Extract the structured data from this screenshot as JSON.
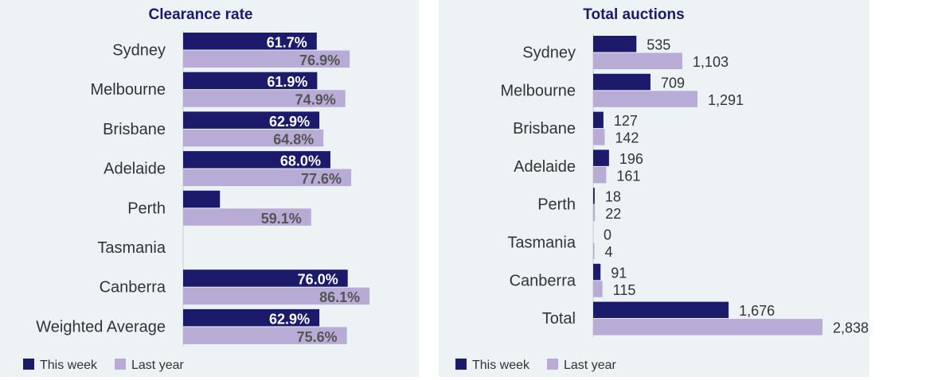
{
  "colors": {
    "this_week": "#1b1a6b",
    "last_year": "#b8acd6",
    "panel_bg": "#edf2f5",
    "axis": "#c8ccd0"
  },
  "chart_data": [
    {
      "type": "bar",
      "orientation": "horizontal",
      "title": "Clearance rate",
      "categories": [
        "Sydney",
        "Melbourne",
        "Brisbane",
        "Adelaide",
        "Perth",
        "Tasmania",
        "Canberra",
        "Weighted Average"
      ],
      "series": [
        {
          "name": "This week",
          "values": [
            61.7,
            61.9,
            62.9,
            68.0,
            17.0,
            null,
            76.0,
            62.9
          ],
          "labels": [
            "61.7%",
            "61.9%",
            "62.9%",
            "68.0%",
            "",
            "",
            "76.0%",
            "62.9%"
          ]
        },
        {
          "name": "Last year",
          "values": [
            76.9,
            74.9,
            64.8,
            77.6,
            59.1,
            null,
            86.1,
            75.6
          ],
          "labels": [
            "76.9%",
            "74.9%",
            "64.8%",
            "77.6%",
            "59.1%",
            "",
            "86.1%",
            "75.6%"
          ]
        }
      ],
      "xlim": [
        0,
        100
      ],
      "legend": "bottom-left"
    },
    {
      "type": "bar",
      "orientation": "horizontal",
      "title": "Total auctions",
      "categories": [
        "Sydney",
        "Melbourne",
        "Brisbane",
        "Adelaide",
        "Perth",
        "Tasmania",
        "Canberra",
        "Total"
      ],
      "series": [
        {
          "name": "This week",
          "values": [
            535,
            709,
            127,
            196,
            18,
            0,
            91,
            1676
          ],
          "labels": [
            "535",
            "709",
            "127",
            "196",
            "18",
            "0",
            "91",
            "1,676"
          ]
        },
        {
          "name": "Last year",
          "values": [
            1103,
            1291,
            142,
            161,
            22,
            4,
            115,
            2838
          ],
          "labels": [
            "1,103",
            "1,291",
            "142",
            "161",
            "22",
            "4",
            "115",
            "2,838"
          ]
        }
      ],
      "xlim": [
        0,
        2838
      ],
      "legend": "bottom-left"
    }
  ]
}
